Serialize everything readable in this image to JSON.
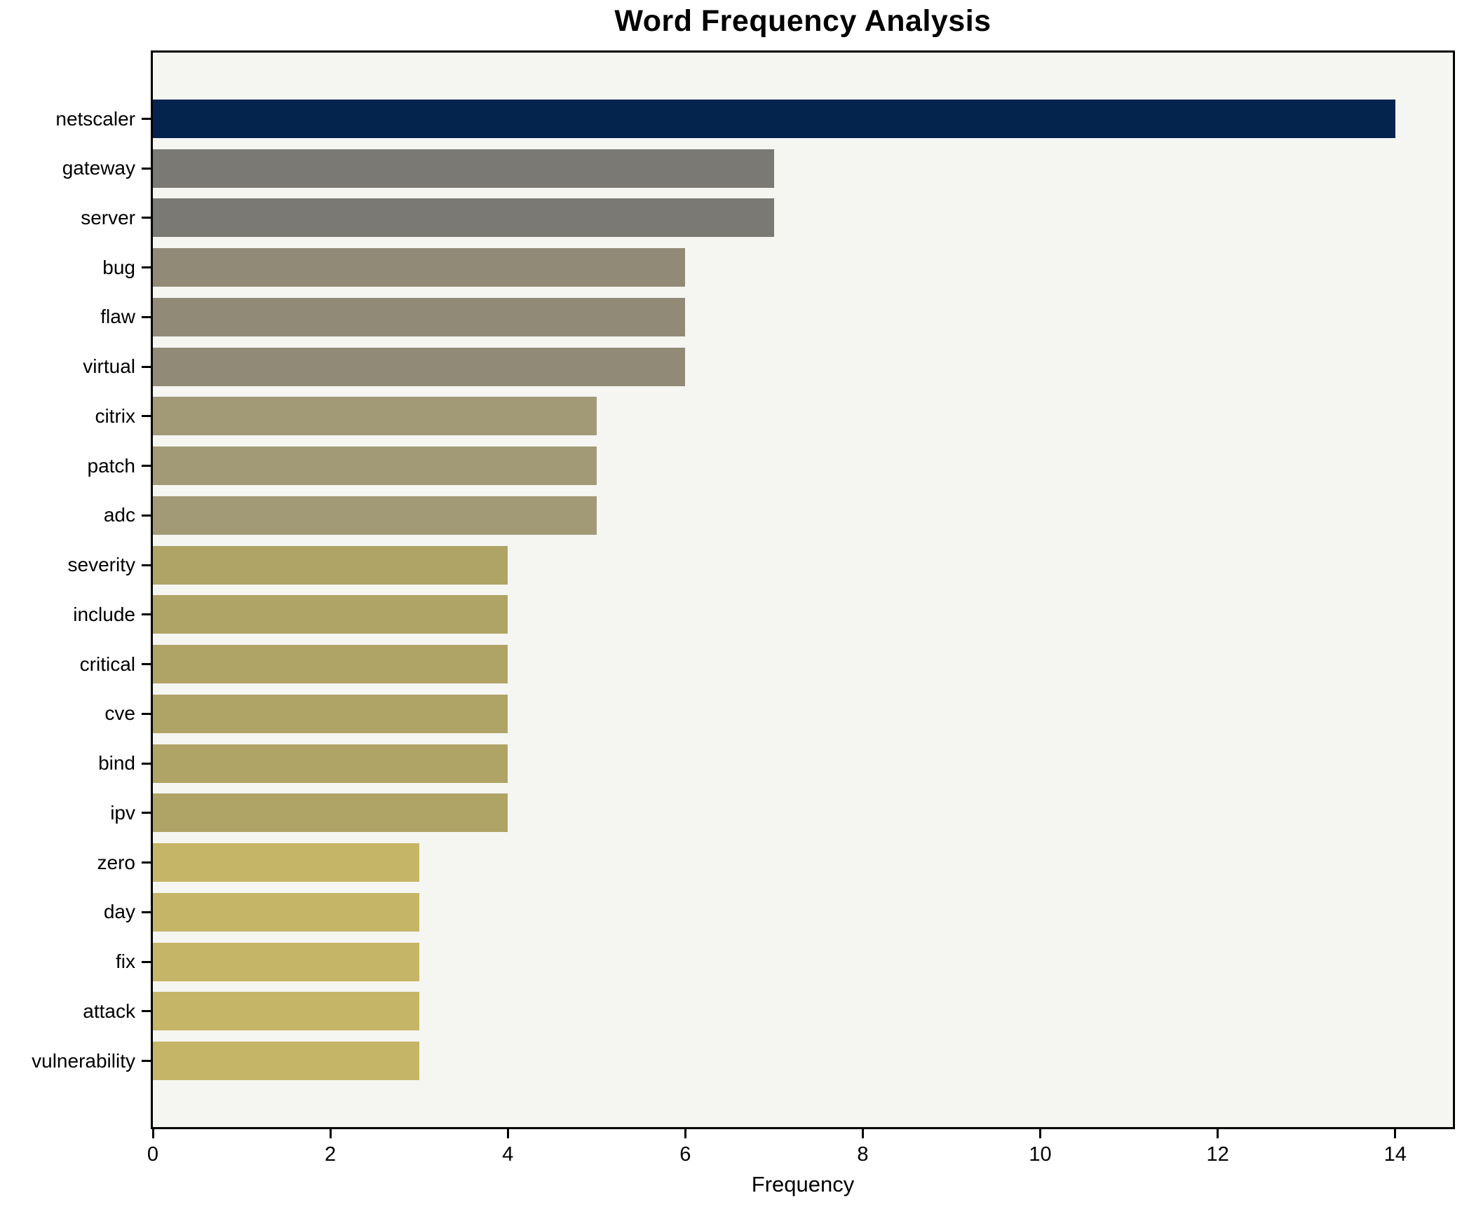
{
  "chart_data": {
    "type": "bar",
    "orientation": "horizontal",
    "title": "Word Frequency Analysis",
    "xlabel": "Frequency",
    "ylabel": "",
    "categories": [
      "netscaler",
      "gateway",
      "server",
      "bug",
      "flaw",
      "virtual",
      "citrix",
      "patch",
      "adc",
      "severity",
      "include",
      "critical",
      "cve",
      "bind",
      "ipv",
      "zero",
      "day",
      "fix",
      "attack",
      "vulnerability"
    ],
    "values": [
      14,
      7,
      7,
      6,
      6,
      6,
      5,
      5,
      5,
      4,
      4,
      4,
      4,
      4,
      4,
      3,
      3,
      3,
      3,
      3
    ],
    "bar_colors": [
      "#04234d",
      "#7a7974",
      "#7a7974",
      "#908a77",
      "#908a77",
      "#908a77",
      "#a29a76",
      "#a29a76",
      "#a29a76",
      "#afa466",
      "#afa466",
      "#afa466",
      "#afa466",
      "#afa466",
      "#afa466",
      "#c5b566",
      "#c5b566",
      "#c5b566",
      "#c5b566",
      "#c5b566"
    ],
    "xticks": [
      0,
      2,
      4,
      6,
      8,
      10,
      12,
      14
    ],
    "xlim": [
      0,
      14.65
    ],
    "grid": false,
    "legend_position": "none",
    "plot_background": "#f5f5f2",
    "figure_background": "#ffffff",
    "axis_color": "#000000"
  }
}
